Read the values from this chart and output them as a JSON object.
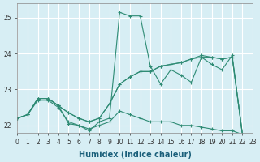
{
  "xlabel": "Humidex (Indice chaleur)",
  "ylabel": "",
  "background_color": "#d7eef4",
  "grid_color": "#ffffff",
  "line_color": "#2e8b74",
  "xlim": [
    0,
    23
  ],
  "ylim": [
    21.8,
    25.4
  ],
  "yticks": [
    22,
    23,
    24,
    25
  ],
  "xticks": [
    0,
    1,
    2,
    3,
    4,
    5,
    6,
    7,
    8,
    9,
    10,
    11,
    12,
    13,
    14,
    15,
    16,
    17,
    18,
    19,
    20,
    21,
    22,
    23
  ],
  "series": [
    [
      22.2,
      22.3,
      22.75,
      22.75,
      22.55,
      22.05,
      22.0,
      21.85,
      22.1,
      22.2,
      25.15,
      25.05,
      25.05,
      23.65,
      23.15,
      23.55,
      23.4,
      23.2,
      23.9,
      23.7,
      23.55,
      23.95,
      21.75
    ],
    [
      22.2,
      22.3,
      22.75,
      22.75,
      22.55,
      22.35,
      22.2,
      22.1,
      22.2,
      22.6,
      23.15,
      23.35,
      23.5,
      23.5,
      23.65,
      23.7,
      23.75,
      23.85,
      23.9,
      23.9,
      23.85,
      23.9,
      21.75
    ],
    [
      22.2,
      22.3,
      22.75,
      22.75,
      22.55,
      22.35,
      22.2,
      22.1,
      22.2,
      22.6,
      23.15,
      23.35,
      23.5,
      23.5,
      23.65,
      23.7,
      23.75,
      23.85,
      23.95,
      23.9,
      23.85,
      23.9,
      21.75
    ],
    [
      22.2,
      22.3,
      22.7,
      22.7,
      22.5,
      22.1,
      22.0,
      21.9,
      22.0,
      22.1,
      22.4,
      22.3,
      22.2,
      22.1,
      22.1,
      22.1,
      22.0,
      22.0,
      21.95,
      21.9,
      21.85,
      21.85,
      21.75
    ]
  ],
  "markers": [
    true,
    true,
    true,
    true
  ],
  "marker_size": 3
}
